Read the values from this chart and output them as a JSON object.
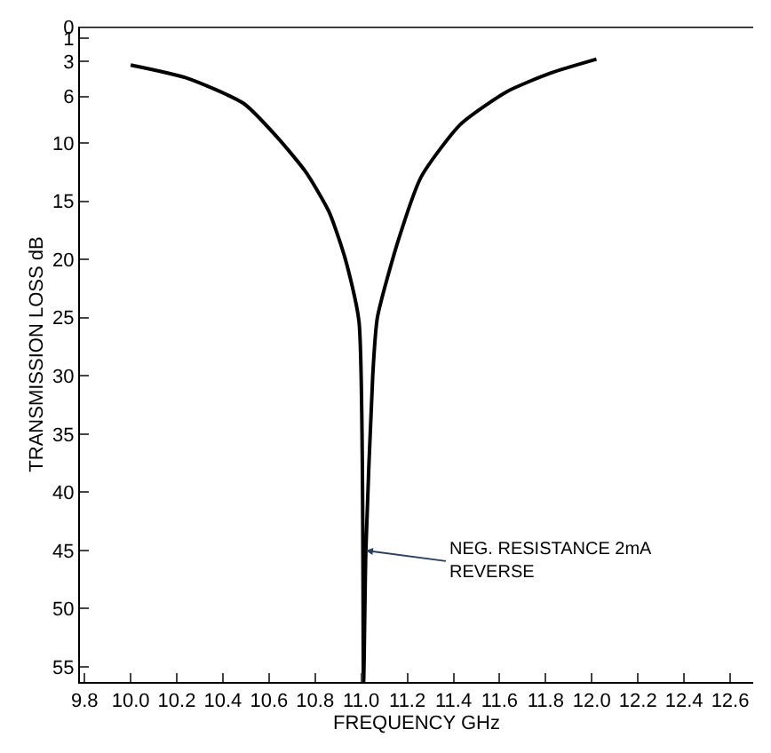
{
  "chart_data": {
    "type": "line",
    "xlabel": "FREQUENCY GHz",
    "ylabel": "TRANSMISSION LOSS dB",
    "x": [
      10.0,
      10.24,
      10.49,
      10.64,
      10.76,
      10.86,
      10.93,
      10.99,
      11.01,
      11.02,
      11.05,
      11.07,
      11.16,
      11.26,
      11.43,
      11.63,
      11.82,
      12.02
    ],
    "series": [
      {
        "color": "#000000",
        "values": [
          3.3,
          4.4,
          6.6,
          9.6,
          12.5,
          15.9,
          19.9,
          25.3,
          56.3,
          45,
          29.9,
          25,
          18.4,
          12.9,
          8.4,
          5.6,
          4.0,
          2.8
        ]
      }
    ],
    "xlim": [
      9.78,
      12.7
    ],
    "ylim": [
      56.3,
      0
    ],
    "xticks": [
      {
        "value": 9.8,
        "label": "9.8"
      },
      {
        "value": 10.0,
        "label": "10.0"
      },
      {
        "value": 10.2,
        "label": "10.2"
      },
      {
        "value": 10.4,
        "label": "10.4"
      },
      {
        "value": 10.6,
        "label": "10.6"
      },
      {
        "value": 10.8,
        "label": "10.8"
      },
      {
        "value": 11.0,
        "label": "11.0"
      },
      {
        "value": 11.2,
        "label": "11.2"
      },
      {
        "value": 11.4,
        "label": "11.4"
      },
      {
        "value": 11.6,
        "label": "11.6"
      },
      {
        "value": 11.8,
        "label": "11.8"
      },
      {
        "value": 12.0,
        "label": "12.0"
      },
      {
        "value": 12.2,
        "label": "12.2"
      },
      {
        "value": 12.4,
        "label": "12.4"
      },
      {
        "value": 12.6,
        "label": "12.6"
      }
    ],
    "yticks": [
      0,
      1,
      3,
      6,
      10,
      15,
      20,
      25,
      30,
      35,
      40,
      45,
      50,
      55
    ],
    "annotations": [
      {
        "text": "NEG. RESISTANCE 2mA\nREVERSE",
        "x": 11.02,
        "y": 45
      }
    ],
    "marker": "none",
    "line_style": "solid"
  }
}
